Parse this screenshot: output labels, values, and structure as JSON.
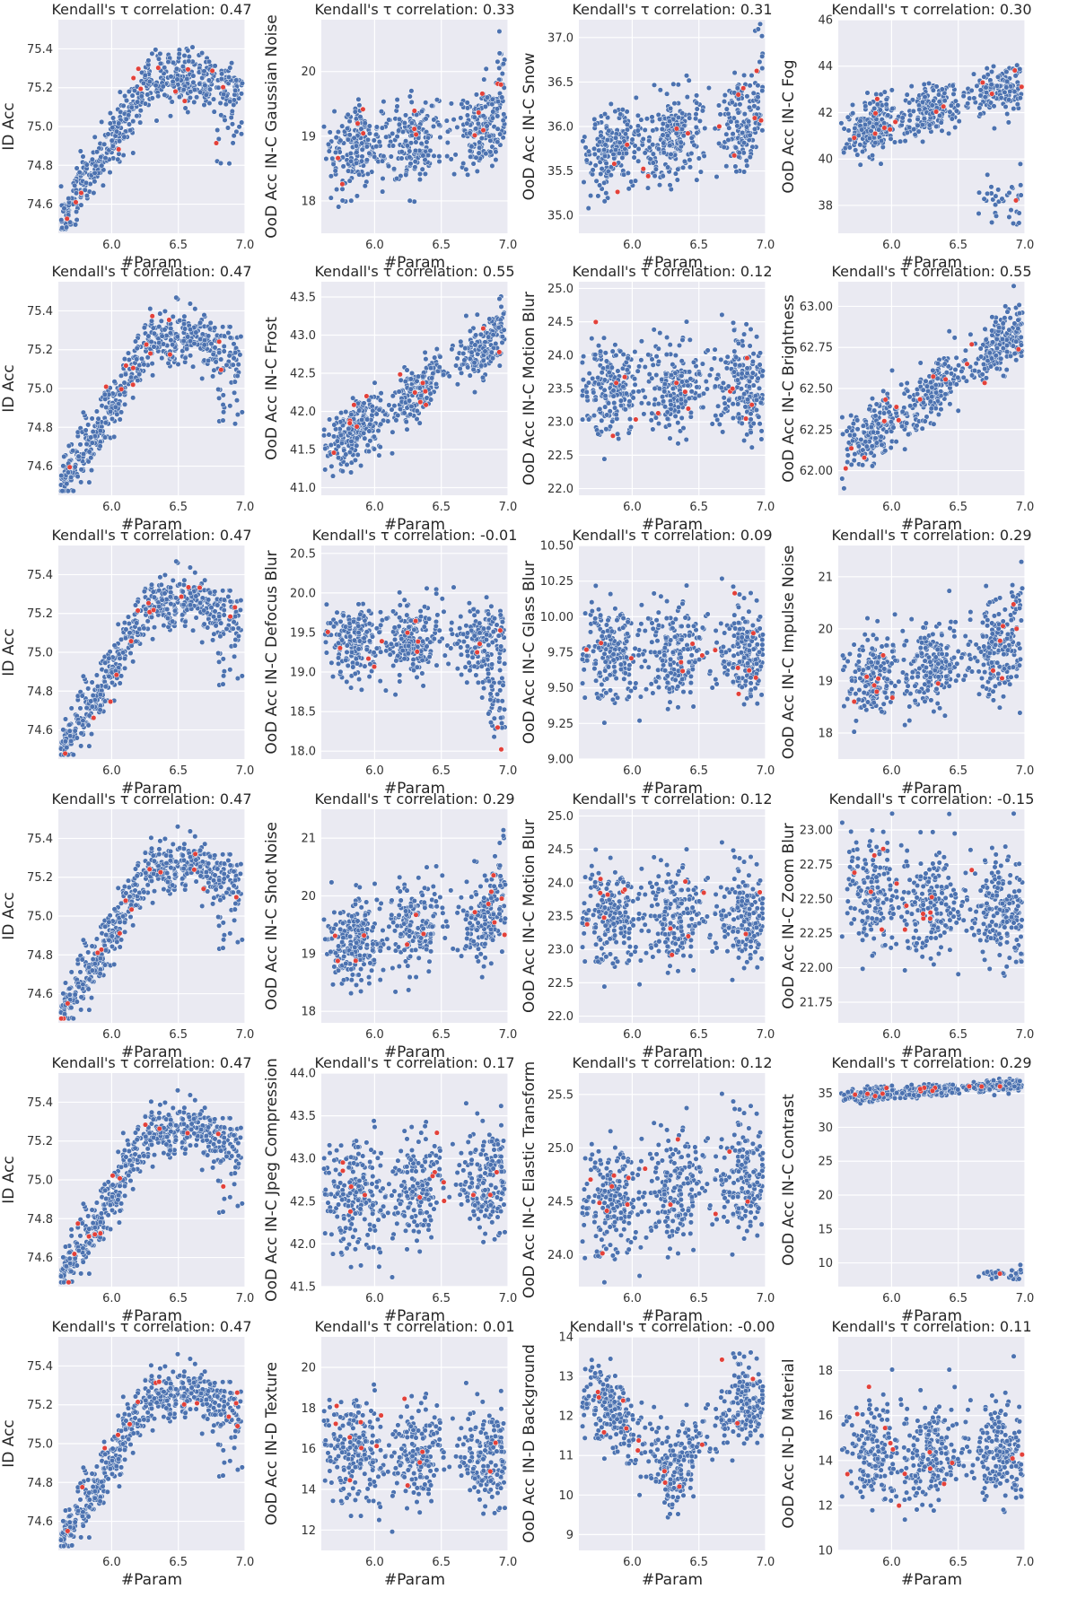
{
  "figure": {
    "rows": 6,
    "cols": 4,
    "point_color": "#4c72b0",
    "highlight_color": "#e3413a",
    "background": "#eaeaf2"
  },
  "chart_data": [
    {
      "type": "scatter",
      "title": "Kendall's τ correlation: 0.47",
      "xlabel": "#Param",
      "ylabel": "ID Acc",
      "xlim": [
        5.6,
        7.0
      ],
      "ylim": [
        74.45,
        75.55
      ],
      "xticks": [
        "6.0",
        "6.5",
        "7.0"
      ],
      "yticks": [
        "74.6",
        "74.8",
        "75.0",
        "75.2",
        "75.4"
      ],
      "pattern": "id"
    },
    {
      "type": "scatter",
      "title": "Kendall's τ correlation: 0.33",
      "xlabel": "#Param",
      "ylabel": "OoD Acc IN-C Gaussian Noise",
      "xlim": [
        5.6,
        7.0
      ],
      "ylim": [
        17.5,
        20.8
      ],
      "xticks": [
        "6.0",
        "6.5",
        "7.0"
      ],
      "yticks": [
        "18",
        "19",
        "20"
      ],
      "pattern": "rise_mild"
    },
    {
      "type": "scatter",
      "title": "Kendall's τ correlation: 0.31",
      "xlabel": "#Param",
      "ylabel": "OoD Acc IN-C Snow",
      "xlim": [
        5.6,
        7.0
      ],
      "ylim": [
        34.8,
        37.2
      ],
      "xticks": [
        "6.0",
        "6.5",
        "7.0"
      ],
      "yticks": [
        "35.0",
        "35.5",
        "36.0",
        "36.5",
        "37.0"
      ],
      "pattern": "rise_mild"
    },
    {
      "type": "scatter",
      "title": "Kendall's τ correlation: 0.30",
      "xlabel": "#Param",
      "ylabel": "OoD Acc IN-C Fog",
      "xlim": [
        5.6,
        7.0
      ],
      "ylim": [
        36.8,
        46.0
      ],
      "xticks": [
        "6.0",
        "6.5",
        "7.0"
      ],
      "yticks": [
        "38",
        "40",
        "42",
        "44",
        "46"
      ],
      "pattern": "fog"
    },
    {
      "type": "scatter",
      "title": "Kendall's τ correlation: 0.47",
      "xlabel": "#Param",
      "ylabel": "ID Acc",
      "xlim": [
        5.6,
        7.0
      ],
      "ylim": [
        74.45,
        75.55
      ],
      "xticks": [
        "6.0",
        "6.5",
        "7.0"
      ],
      "yticks": [
        "74.6",
        "74.8",
        "75.0",
        "75.2",
        "75.4"
      ],
      "pattern": "id"
    },
    {
      "type": "scatter",
      "title": "Kendall's τ correlation: 0.55",
      "xlabel": "#Param",
      "ylabel": "OoD Acc IN-C Frost",
      "xlim": [
        5.6,
        7.0
      ],
      "ylim": [
        40.9,
        43.7
      ],
      "xticks": [
        "6.0",
        "6.5",
        "7.0"
      ],
      "yticks": [
        "41.0",
        "41.5",
        "42.0",
        "42.5",
        "43.0",
        "43.5"
      ],
      "pattern": "rise_strong"
    },
    {
      "type": "scatter",
      "title": "Kendall's τ correlation: 0.12",
      "xlabel": "#Param",
      "ylabel": "OoD Acc IN-C Motion Blur",
      "xlim": [
        5.6,
        7.0
      ],
      "ylim": [
        21.9,
        25.1
      ],
      "xticks": [
        "6.0",
        "6.5",
        "7.0"
      ],
      "yticks": [
        "22.0",
        "22.5",
        "23.0",
        "23.5",
        "24.0",
        "24.5",
        "25.0"
      ],
      "pattern": "clusters"
    },
    {
      "type": "scatter",
      "title": "Kendall's τ correlation: 0.55",
      "xlabel": "#Param",
      "ylabel": "OoD Acc IN-C Brightness",
      "xlim": [
        5.6,
        7.0
      ],
      "ylim": [
        61.85,
        63.15
      ],
      "xticks": [
        "6.0",
        "6.5",
        "7.0"
      ],
      "yticks": [
        "62.00",
        "62.25",
        "62.50",
        "62.75",
        "63.00"
      ],
      "pattern": "rise_strong"
    },
    {
      "type": "scatter",
      "title": "Kendall's τ correlation: 0.47",
      "xlabel": "#Param",
      "ylabel": "ID Acc",
      "xlim": [
        5.6,
        7.0
      ],
      "ylim": [
        74.45,
        75.55
      ],
      "xticks": [
        "6.0",
        "6.5",
        "7.0"
      ],
      "yticks": [
        "74.6",
        "74.8",
        "75.0",
        "75.2",
        "75.4"
      ],
      "pattern": "id"
    },
    {
      "type": "scatter",
      "title": "Kendall's τ correlation: -0.01",
      "xlabel": "#Param",
      "ylabel": "OoD Acc IN-C Defocus Blur",
      "xlim": [
        5.6,
        7.0
      ],
      "ylim": [
        17.9,
        20.6
      ],
      "xticks": [
        "6.0",
        "6.5",
        "7.0"
      ],
      "yticks": [
        "18.0",
        "18.5",
        "19.0",
        "19.5",
        "20.0",
        "20.5"
      ],
      "pattern": "flat_drop"
    },
    {
      "type": "scatter",
      "title": "Kendall's τ correlation: 0.09",
      "xlabel": "#Param",
      "ylabel": "OoD Acc IN-C Glass Blur",
      "xlim": [
        5.6,
        7.0
      ],
      "ylim": [
        9.0,
        10.5
      ],
      "xticks": [
        "6.0",
        "6.5",
        "7.0"
      ],
      "yticks": [
        "9.00",
        "9.25",
        "9.50",
        "9.75",
        "10.00",
        "10.25",
        "10.50"
      ],
      "pattern": "clusters"
    },
    {
      "type": "scatter",
      "title": "Kendall's τ correlation: 0.29",
      "xlabel": "#Param",
      "ylabel": "OoD Acc IN-C Impulse Noise",
      "xlim": [
        5.6,
        7.0
      ],
      "ylim": [
        17.5,
        21.6
      ],
      "xticks": [
        "6.0",
        "6.5",
        "7.0"
      ],
      "yticks": [
        "18",
        "19",
        "20",
        "21"
      ],
      "pattern": "rise_mild"
    },
    {
      "type": "scatter",
      "title": "Kendall's τ correlation: 0.47",
      "xlabel": "#Param",
      "ylabel": "ID Acc",
      "xlim": [
        5.6,
        7.0
      ],
      "ylim": [
        74.45,
        75.55
      ],
      "xticks": [
        "6.0",
        "6.5",
        "7.0"
      ],
      "yticks": [
        "74.6",
        "74.8",
        "75.0",
        "75.2",
        "75.4"
      ],
      "pattern": "id"
    },
    {
      "type": "scatter",
      "title": "Kendall's τ correlation: 0.29",
      "xlabel": "#Param",
      "ylabel": "OoD Acc IN-C Shot Noise",
      "xlim": [
        5.6,
        7.0
      ],
      "ylim": [
        17.8,
        21.5
      ],
      "xticks": [
        "6.0",
        "6.5",
        "7.0"
      ],
      "yticks": [
        "18",
        "19",
        "20",
        "21"
      ],
      "pattern": "rise_mild"
    },
    {
      "type": "scatter",
      "title": "Kendall's τ correlation: 0.12",
      "xlabel": "#Param",
      "ylabel": "OoD Acc IN-C Motion Blur",
      "xlim": [
        5.6,
        7.0
      ],
      "ylim": [
        21.9,
        25.1
      ],
      "xticks": [
        "6.0",
        "6.5",
        "7.0"
      ],
      "yticks": [
        "22.0",
        "22.5",
        "23.0",
        "23.5",
        "24.0",
        "24.5",
        "25.0"
      ],
      "pattern": "clusters"
    },
    {
      "type": "scatter",
      "title": "Kendall's τ correlation: -0.15",
      "xlabel": "#Param",
      "ylabel": "OoD Acc IN-C Zoom Blur",
      "xlim": [
        5.6,
        7.0
      ],
      "ylim": [
        21.6,
        23.15
      ],
      "xticks": [
        "6.0",
        "6.5",
        "7.0"
      ],
      "yticks": [
        "21.75",
        "22.00",
        "22.25",
        "22.50",
        "22.75",
        "23.00"
      ],
      "pattern": "fall"
    },
    {
      "type": "scatter",
      "title": "Kendall's τ correlation: 0.47",
      "xlabel": "#Param",
      "ylabel": "ID Acc",
      "xlim": [
        5.6,
        7.0
      ],
      "ylim": [
        74.45,
        75.55
      ],
      "xticks": [
        "6.0",
        "6.5",
        "7.0"
      ],
      "yticks": [
        "74.6",
        "74.8",
        "75.0",
        "75.2",
        "75.4"
      ],
      "pattern": "id"
    },
    {
      "type": "scatter",
      "title": "Kendall's τ correlation: 0.17",
      "xlabel": "#Param",
      "ylabel": "OoD Acc IN-C Jpeg Compression",
      "xlim": [
        5.6,
        7.0
      ],
      "ylim": [
        41.5,
        44.0
      ],
      "xticks": [
        "6.0",
        "6.5",
        "7.0"
      ],
      "yticks": [
        "41.5",
        "42.0",
        "42.5",
        "43.0",
        "43.5",
        "44.0"
      ],
      "pattern": "clusters_rise"
    },
    {
      "type": "scatter",
      "title": "Kendall's τ correlation: 0.12",
      "xlabel": "#Param",
      "ylabel": "OoD Acc IN-C Elastic Transform",
      "xlim": [
        5.6,
        7.0
      ],
      "ylim": [
        23.7,
        25.7
      ],
      "xticks": [
        "6.0",
        "6.5",
        "7.0"
      ],
      "yticks": [
        "24.0",
        "24.5",
        "25.0",
        "25.5"
      ],
      "pattern": "clusters_rise"
    },
    {
      "type": "scatter",
      "title": "Kendall's τ correlation: 0.29",
      "xlabel": "#Param",
      "ylabel": "OoD Acc IN-C Contrast",
      "xlim": [
        5.6,
        7.0
      ],
      "ylim": [
        6.5,
        38.0
      ],
      "xticks": [
        "6.0",
        "6.5",
        "7.0"
      ],
      "yticks": [
        "10",
        "15",
        "20",
        "25",
        "30",
        "35"
      ],
      "pattern": "contrast"
    },
    {
      "type": "scatter",
      "title": "Kendall's τ correlation: 0.47",
      "xlabel": "#Param",
      "ylabel": "ID Acc",
      "xlim": [
        5.6,
        7.0
      ],
      "ylim": [
        74.45,
        75.55
      ],
      "xticks": [
        "6.0",
        "6.5",
        "7.0"
      ],
      "yticks": [
        "74.6",
        "74.8",
        "75.0",
        "75.2",
        "75.4"
      ],
      "pattern": "id"
    },
    {
      "type": "scatter",
      "title": "Kendall's τ correlation: 0.01",
      "xlabel": "#Param",
      "ylabel": "OoD Acc IN-D Texture",
      "xlim": [
        5.6,
        7.0
      ],
      "ylim": [
        11.0,
        21.5
      ],
      "xticks": [
        "6.0",
        "6.5",
        "7.0"
      ],
      "yticks": [
        "12",
        "14",
        "16",
        "18",
        "20"
      ],
      "pattern": "flat_wide"
    },
    {
      "type": "scatter",
      "title": "Kendall's τ correlation: -0.00",
      "xlabel": "#Param",
      "ylabel": "OoD Acc IN-D Background",
      "xlim": [
        5.6,
        7.0
      ],
      "ylim": [
        8.6,
        14.0
      ],
      "xticks": [
        "6.0",
        "6.5",
        "7.0"
      ],
      "yticks": [
        "9",
        "10",
        "11",
        "12",
        "13",
        "14"
      ],
      "pattern": "valley"
    },
    {
      "type": "scatter",
      "title": "Kendall's τ correlation: 0.11",
      "xlabel": "#Param",
      "ylabel": "OoD Acc IN-D Material",
      "xlim": [
        5.6,
        7.0
      ],
      "ylim": [
        10.0,
        19.5
      ],
      "xticks": [
        "6.0",
        "6.5",
        "7.0"
      ],
      "yticks": [
        "10",
        "12",
        "14",
        "16",
        "18"
      ],
      "pattern": "flat_wide"
    }
  ]
}
